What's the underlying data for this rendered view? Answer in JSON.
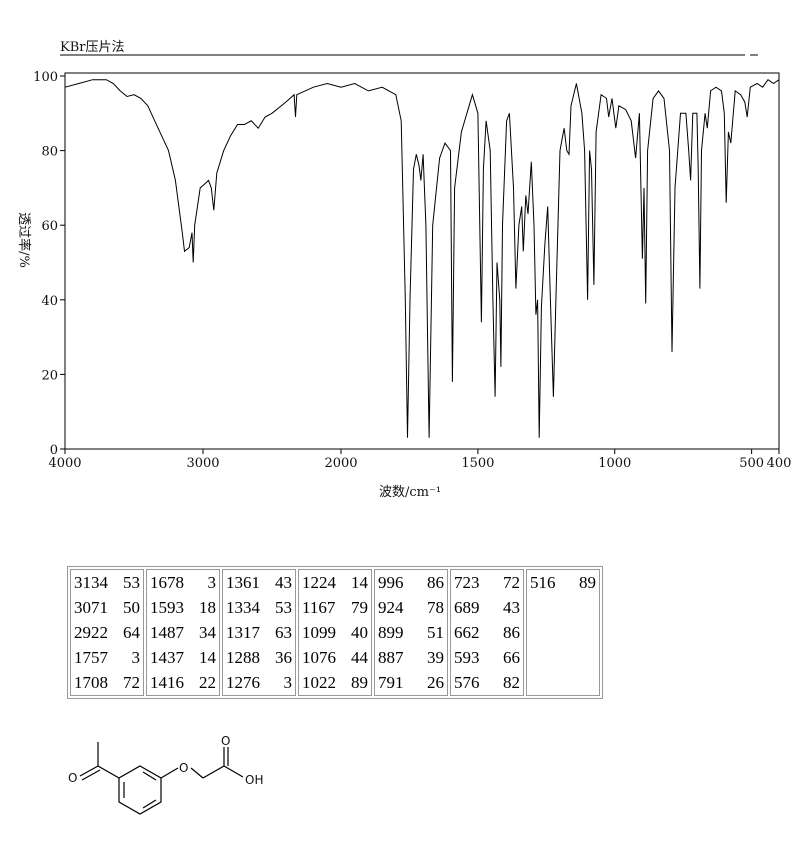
{
  "chart_data": {
    "type": "line",
    "title": "KBr压片法",
    "xlabel": "波数/cm⁻¹",
    "ylabel": "透过率/%",
    "color": "#000000",
    "x_scale_break": 2000,
    "xlim": [
      4000,
      400
    ],
    "xticks": [
      4000,
      3000,
      2000,
      1500,
      1000,
      500,
      400
    ],
    "ylim": [
      0,
      100
    ],
    "yticks": [
      0,
      20,
      40,
      60,
      80,
      100
    ],
    "x": [
      4000,
      3900,
      3800,
      3700,
      3650,
      3600,
      3550,
      3500,
      3450,
      3400,
      3350,
      3300,
      3250,
      3200,
      3150,
      3134,
      3100,
      3080,
      3071,
      3060,
      3020,
      2990,
      2960,
      2940,
      2922,
      2900,
      2850,
      2800,
      2750,
      2700,
      2650,
      2600,
      2550,
      2500,
      2400,
      2340,
      2330,
      2320,
      2200,
      2100,
      2000,
      1950,
      1900,
      1850,
      1800,
      1780,
      1765,
      1757,
      1748,
      1735,
      1725,
      1715,
      1708,
      1700,
      1690,
      1678,
      1665,
      1640,
      1620,
      1600,
      1593,
      1585,
      1560,
      1520,
      1500,
      1487,
      1480,
      1470,
      1455,
      1445,
      1437,
      1430,
      1420,
      1416,
      1410,
      1395,
      1385,
      1370,
      1361,
      1350,
      1340,
      1334,
      1325,
      1317,
      1305,
      1295,
      1288,
      1282,
      1276,
      1268,
      1255,
      1245,
      1235,
      1224,
      1215,
      1200,
      1185,
      1175,
      1167,
      1160,
      1140,
      1120,
      1110,
      1099,
      1092,
      1085,
      1076,
      1068,
      1050,
      1030,
      1022,
      1010,
      996,
      985,
      960,
      940,
      924,
      910,
      899,
      893,
      887,
      880,
      860,
      840,
      820,
      800,
      791,
      780,
      760,
      740,
      730,
      723,
      715,
      700,
      695,
      689,
      683,
      670,
      662,
      650,
      630,
      610,
      600,
      593,
      585,
      576,
      560,
      540,
      525,
      516,
      505,
      480,
      460,
      440,
      420,
      400
    ],
    "values": [
      97,
      98,
      99,
      99,
      98,
      96,
      94.5,
      95,
      94,
      92,
      88,
      84,
      80,
      72,
      58,
      53,
      54,
      58,
      50,
      60,
      70,
      71,
      72,
      70,
      64,
      74,
      80,
      84,
      87,
      87,
      88,
      86,
      89,
      90,
      93,
      95,
      89,
      95,
      97,
      98,
      97,
      98,
      96,
      97,
      95,
      88,
      40,
      3,
      40,
      75,
      79,
      76,
      72,
      79,
      60,
      3,
      60,
      78,
      82,
      80,
      18,
      70,
      85,
      95,
      90,
      34,
      75,
      88,
      80,
      40,
      14,
      50,
      40,
      22,
      60,
      88,
      90,
      70,
      43,
      60,
      65,
      53,
      68,
      63,
      77,
      60,
      36,
      40,
      3,
      38,
      55,
      65,
      40,
      14,
      40,
      80,
      86,
      80,
      79,
      92,
      98,
      90,
      80,
      40,
      80,
      75,
      44,
      85,
      95,
      94,
      89,
      94,
      86,
      92,
      91,
      88,
      78,
      90,
      51,
      70,
      39,
      80,
      94,
      96,
      94,
      80,
      26,
      70,
      90,
      90,
      80,
      72,
      90,
      90,
      75,
      43,
      80,
      90,
      86,
      96,
      97,
      96,
      90,
      66,
      85,
      82,
      96,
      95,
      93,
      89,
      97,
      98,
      97,
      99,
      98,
      99
    ]
  },
  "peaks": [
    [
      [
        3134,
        53
      ],
      [
        3071,
        50
      ],
      [
        2922,
        64
      ],
      [
        1757,
        3
      ],
      [
        1708,
        72
      ]
    ],
    [
      [
        1678,
        3
      ],
      [
        1593,
        18
      ],
      [
        1487,
        34
      ],
      [
        1437,
        14
      ],
      [
        1416,
        22
      ]
    ],
    [
      [
        1361,
        43
      ],
      [
        1334,
        53
      ],
      [
        1317,
        63
      ],
      [
        1288,
        36
      ],
      [
        1276,
        3
      ]
    ],
    [
      [
        1224,
        14
      ],
      [
        1167,
        79
      ],
      [
        1099,
        40
      ],
      [
        1076,
        44
      ],
      [
        1022,
        89
      ]
    ],
    [
      [
        996,
        86
      ],
      [
        924,
        78
      ],
      [
        899,
        51
      ],
      [
        887,
        39
      ],
      [
        791,
        26
      ]
    ],
    [
      [
        723,
        72
      ],
      [
        689,
        43
      ],
      [
        662,
        86
      ],
      [
        593,
        66
      ],
      [
        576,
        82
      ]
    ],
    [
      [
        516,
        89
      ]
    ]
  ],
  "structure": {
    "labels": [
      "O",
      "O",
      "O",
      "OH"
    ]
  }
}
